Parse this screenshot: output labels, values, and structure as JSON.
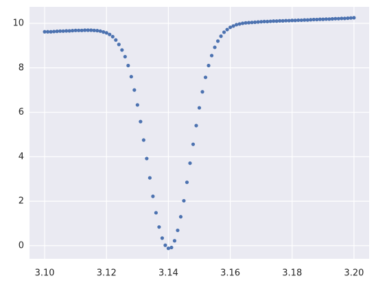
{
  "chart_data": {
    "type": "scatter",
    "x": [
      3.1,
      3.101,
      3.102,
      3.103,
      3.104,
      3.105,
      3.106,
      3.107,
      3.108,
      3.109,
      3.11,
      3.111,
      3.112,
      3.113,
      3.114,
      3.115,
      3.116,
      3.117,
      3.118,
      3.119,
      3.12,
      3.121,
      3.122,
      3.123,
      3.124,
      3.125,
      3.126,
      3.127,
      3.128,
      3.129,
      3.13,
      3.131,
      3.132,
      3.133,
      3.134,
      3.135,
      3.136,
      3.137,
      3.138,
      3.139,
      3.14,
      3.141,
      3.142,
      3.143,
      3.144,
      3.145,
      3.146,
      3.147,
      3.148,
      3.149,
      3.15,
      3.151,
      3.152,
      3.153,
      3.154,
      3.155,
      3.156,
      3.157,
      3.158,
      3.159,
      3.16,
      3.161,
      3.162,
      3.163,
      3.164,
      3.165,
      3.166,
      3.167,
      3.168,
      3.169,
      3.17,
      3.171,
      3.172,
      3.173,
      3.174,
      3.175,
      3.176,
      3.177,
      3.178,
      3.179,
      3.18,
      3.181,
      3.182,
      3.183,
      3.184,
      3.185,
      3.186,
      3.187,
      3.188,
      3.189,
      3.19,
      3.191,
      3.192,
      3.193,
      3.194,
      3.195,
      3.196,
      3.197,
      3.198,
      3.199,
      3.2
    ],
    "values": [
      9.62,
      9.62,
      9.62,
      9.63,
      9.64,
      9.65,
      9.65,
      9.66,
      9.66,
      9.67,
      9.68,
      9.68,
      9.68,
      9.69,
      9.69,
      9.69,
      9.68,
      9.67,
      9.65,
      9.61,
      9.57,
      9.5,
      9.4,
      9.25,
      9.05,
      8.8,
      8.5,
      8.1,
      7.6,
      7.0,
      6.33,
      5.58,
      4.75,
      3.92,
      3.05,
      2.22,
      1.48,
      0.84,
      0.34,
      0.02,
      -0.12,
      -0.08,
      0.22,
      0.69,
      1.3,
      2.02,
      2.85,
      3.71,
      4.56,
      5.4,
      6.2,
      6.92,
      7.57,
      8.1,
      8.55,
      8.92,
      9.2,
      9.42,
      9.6,
      9.72,
      9.82,
      9.88,
      9.94,
      9.97,
      10.0,
      10.02,
      10.03,
      10.04,
      10.05,
      10.06,
      10.07,
      10.08,
      10.08,
      10.09,
      10.1,
      10.1,
      10.11,
      10.11,
      10.12,
      10.12,
      10.13,
      10.13,
      10.14,
      10.14,
      10.15,
      10.15,
      10.16,
      10.17,
      10.17,
      10.18,
      10.18,
      10.19,
      10.19,
      10.2,
      10.21,
      10.21,
      10.22,
      10.22,
      10.23,
      10.24,
      10.25
    ],
    "color": "#4c72b0",
    "xlim": [
      3.0951,
      3.2049
    ],
    "ylim": [
      -0.59,
      10.74
    ],
    "xticks": [
      {
        "value": 3.1,
        "label": "3.10"
      },
      3.12,
      3.14,
      3.16,
      3.18,
      {
        "value": 3.2,
        "label": "3.20"
      }
    ],
    "yticks": [
      0,
      2,
      4,
      6,
      8,
      10
    ],
    "grid": true
  }
}
